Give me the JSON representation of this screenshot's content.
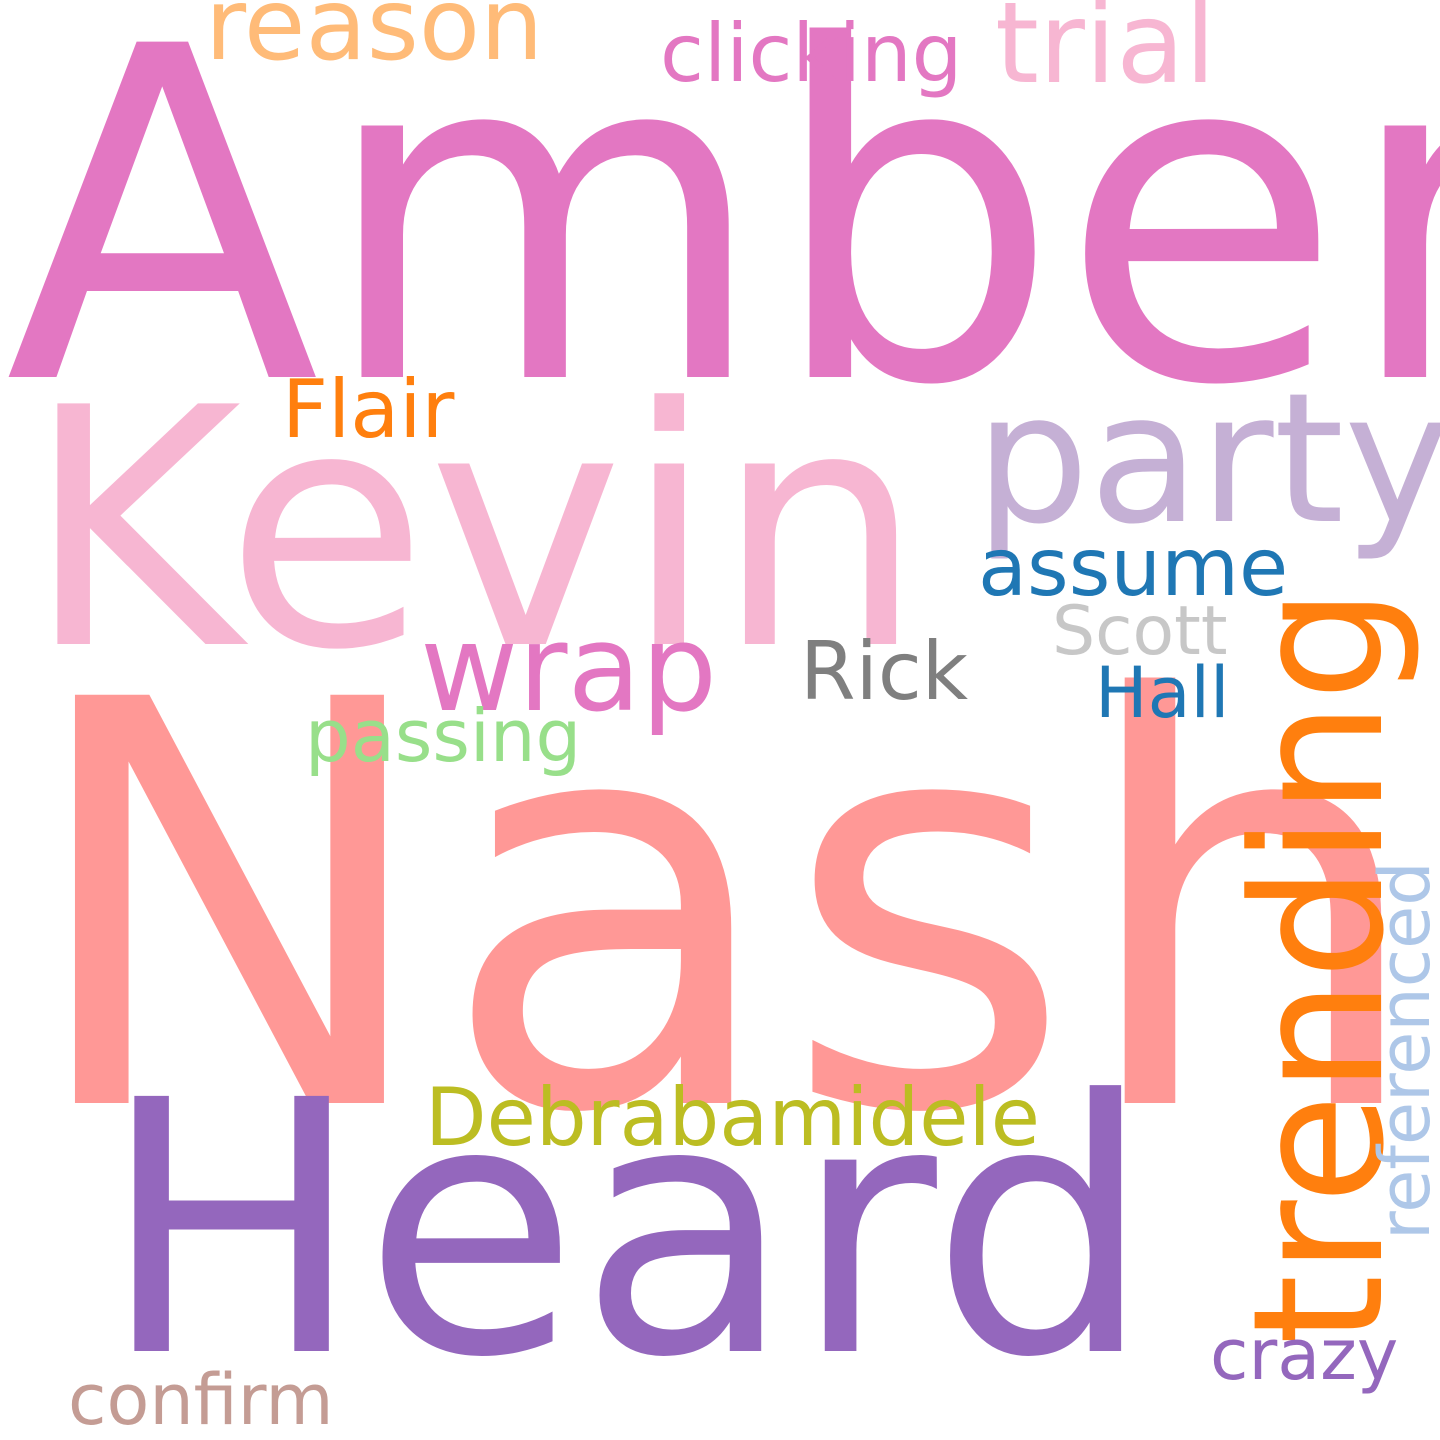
{
  "cloud": {
    "words": {
      "amber": {
        "text": "Amber",
        "color": "#e377c2"
      },
      "nash": {
        "text": "Nash",
        "color": "#ff9896"
      },
      "kevin": {
        "text": "Kevin",
        "color": "#f7b6d2"
      },
      "heard": {
        "text": "Heard",
        "color": "#9467bd"
      },
      "party": {
        "text": "party",
        "color": "#c5b0d5"
      },
      "trending": {
        "text": "trending",
        "color": "#ff7f0e"
      },
      "reason": {
        "text": "reason",
        "color": "#ffbb78"
      },
      "trial": {
        "text": "trial",
        "color": "#f7b6d2"
      },
      "clicking": {
        "text": "clicking",
        "color": "#e377c2"
      },
      "flair": {
        "text": "Flair",
        "color": "#ff7f0e"
      },
      "assume": {
        "text": "assume",
        "color": "#1f77b4"
      },
      "wrap": {
        "text": "wrap",
        "color": "#e377c2"
      },
      "scott": {
        "text": "Scott",
        "color": "#c7c7c7"
      },
      "rick": {
        "text": "Rick",
        "color": "#7f7f7f"
      },
      "hall": {
        "text": "Hall",
        "color": "#1f77b4"
      },
      "passing": {
        "text": "passing",
        "color": "#98df8a"
      },
      "referenced": {
        "text": "referenced",
        "color": "#aec7e8"
      },
      "debra": {
        "text": "Debrabamidele",
        "color": "#bcbd22"
      },
      "crazy": {
        "text": "crazy",
        "color": "#9467bd"
      },
      "confirm": {
        "text": "confirm",
        "color": "#c49c94"
      }
    }
  }
}
